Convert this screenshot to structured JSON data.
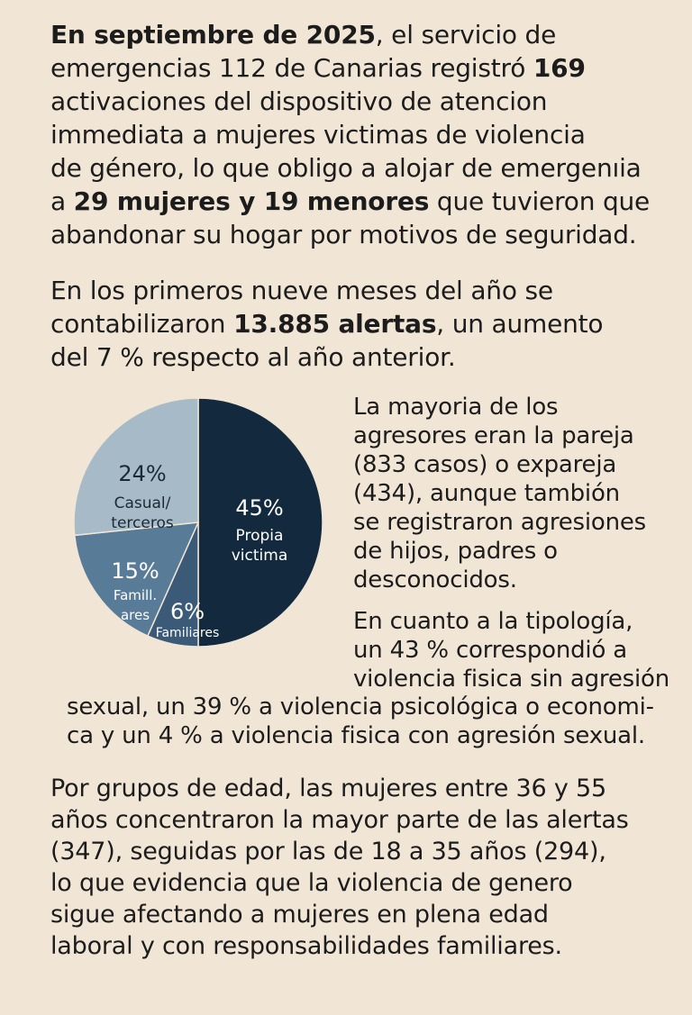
{
  "paragraph1": {
    "lines": [
      [
        {
          "t": "En septiembre de 2025",
          "b": true
        },
        {
          "t": ", el servicio de"
        }
      ],
      [
        {
          "t": "emergencias 112 de Canarias registró "
        },
        {
          "t": "169",
          "b": true
        }
      ],
      [
        {
          "t": "activaciones del dispositivo de atencion"
        }
      ],
      [
        {
          "t": "immediata a mujeres victimas de violencia"
        }
      ],
      [
        {
          "t": "de género, lo que obligo a alojar de emergenıia"
        }
      ],
      [
        {
          "t": "a "
        },
        {
          "t": "29 mujeres y 19 menores",
          "b": true
        },
        {
          "t": " que tuvieron que"
        }
      ],
      [
        {
          "t": "abandonar su hogar por motivos de seguridad."
        }
      ]
    ]
  },
  "paragraph2": {
    "lines": [
      [
        {
          "t": "En los primeros nueve meses del año se"
        }
      ],
      [
        {
          "t": "contabilizaron "
        },
        {
          "t": "13.885 alertas",
          "b": true
        },
        {
          "t": ", un aumento"
        }
      ],
      [
        {
          "t": "del 7 % respecto al año anterior."
        }
      ]
    ]
  },
  "paragraph3": {
    "lines": [
      [
        {
          "t": "La mayoria de los"
        }
      ],
      [
        {
          "t": "agresores eran la pareja"
        }
      ],
      [
        {
          "t": "(833 casos) o expareja"
        }
      ],
      [
        {
          "t": "(434), aunque tambión"
        }
      ],
      [
        {
          "t": "se registraron agresiones"
        }
      ],
      [
        {
          "t": "de hijos, padres o"
        }
      ],
      [
        {
          "t": "desconocidos."
        }
      ]
    ]
  },
  "paragraph4": {
    "lines": [
      [
        {
          "t": "En cuanto a la tipología,"
        }
      ],
      [
        {
          "t": "un 43 % correspondió a"
        }
      ],
      [
        {
          "t": "violencia fisica sin agresión"
        }
      ]
    ]
  },
  "paragraph5": {
    "lines": [
      [
        {
          "t": "sexual, un 39 % a violencia psicológica o economi-"
        }
      ],
      [
        {
          "t": "ca y un 4 % a violencia fisica con agresión sexual."
        }
      ]
    ]
  },
  "paragraph6": {
    "lines": [
      [
        {
          "t": "Por grupos de edad, las mujeres entre 36 y 55"
        }
      ],
      [
        {
          "t": "años concentraron la mayor parte de las alertas"
        }
      ],
      [
        {
          "t": "(347), seguidas por las de 18 a 35 años (294),"
        }
      ],
      [
        {
          "t": "lo que evidencia que la violencia de genero"
        }
      ],
      [
        {
          "t": "sigue afectando a mujeres en plena edad"
        }
      ],
      [
        {
          "t": "laboral y con responsabilidades familiares."
        }
      ]
    ]
  },
  "chart_data": {
    "type": "pie",
    "title": "",
    "start_angle_deg": 0,
    "direction": "clockwise",
    "slices": [
      {
        "pct_label": "45%",
        "name_lines": [
          "Propia",
          "victima"
        ],
        "value": 45,
        "color": "#13293d",
        "text_color": "#ffffff"
      },
      {
        "pct_label": "6%",
        "name_lines": [
          "Familiares"
        ],
        "value": 6,
        "color": "#3b5a78",
        "text_color": "#ffffff"
      },
      {
        "pct_label": "15%",
        "name_lines": [
          "Famill.",
          "ares"
        ],
        "value": 15,
        "color": "#587b98",
        "text_color": "#ffffff"
      },
      {
        "pct_label": "24%",
        "name_lines": [
          "Casual/",
          "terceros"
        ],
        "value": 24,
        "color": "#a7bac7",
        "text_color": "#1c2a36"
      }
    ]
  }
}
